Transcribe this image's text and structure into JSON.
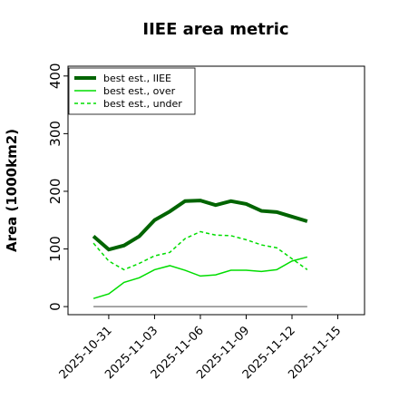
{
  "chart_data": {
    "type": "line",
    "title": "IIEE area metric",
    "ylabel": "Area (1000km2)",
    "x": [
      "2025-10-30",
      "2025-10-31",
      "2025-11-01",
      "2025-11-02",
      "2025-11-03",
      "2025-11-04",
      "2025-11-05",
      "2025-11-06",
      "2025-11-07",
      "2025-11-08",
      "2025-11-09",
      "2025-11-10",
      "2025-11-11",
      "2025-11-12",
      "2025-11-13"
    ],
    "series": [
      {
        "name": "best est., IIEE",
        "color": "#006400",
        "width": 4,
        "dash": "solid",
        "values": [
          122,
          99,
          106,
          122,
          150,
          165,
          183,
          184,
          176,
          183,
          178,
          166,
          164,
          156,
          148
        ]
      },
      {
        "name": "best est., over",
        "color": "#00dd00",
        "width": 1.5,
        "dash": "solid",
        "values": [
          14,
          22,
          42,
          50,
          64,
          71,
          63,
          53,
          55,
          63,
          63,
          61,
          64,
          79,
          86
        ]
      },
      {
        "name": "best est., under",
        "color": "#00dd00",
        "width": 1.5,
        "dash": "dashed",
        "values": [
          110,
          79,
          64,
          75,
          88,
          94,
          118,
          130,
          124,
          123,
          116,
          107,
          102,
          83,
          64
        ]
      }
    ],
    "xlim": [
      "2025-10-28T08:00:00Z",
      "2025-11-16T18:00:00Z"
    ],
    "xticks": [
      "2025-10-31",
      "2025-11-03",
      "2025-11-06",
      "2025-11-09",
      "2025-11-12",
      "2025-11-15"
    ],
    "ylim": [
      -14,
      417
    ],
    "yticks": [
      0,
      100,
      200,
      300,
      400
    ],
    "legend": "upper left",
    "grid": false
  }
}
